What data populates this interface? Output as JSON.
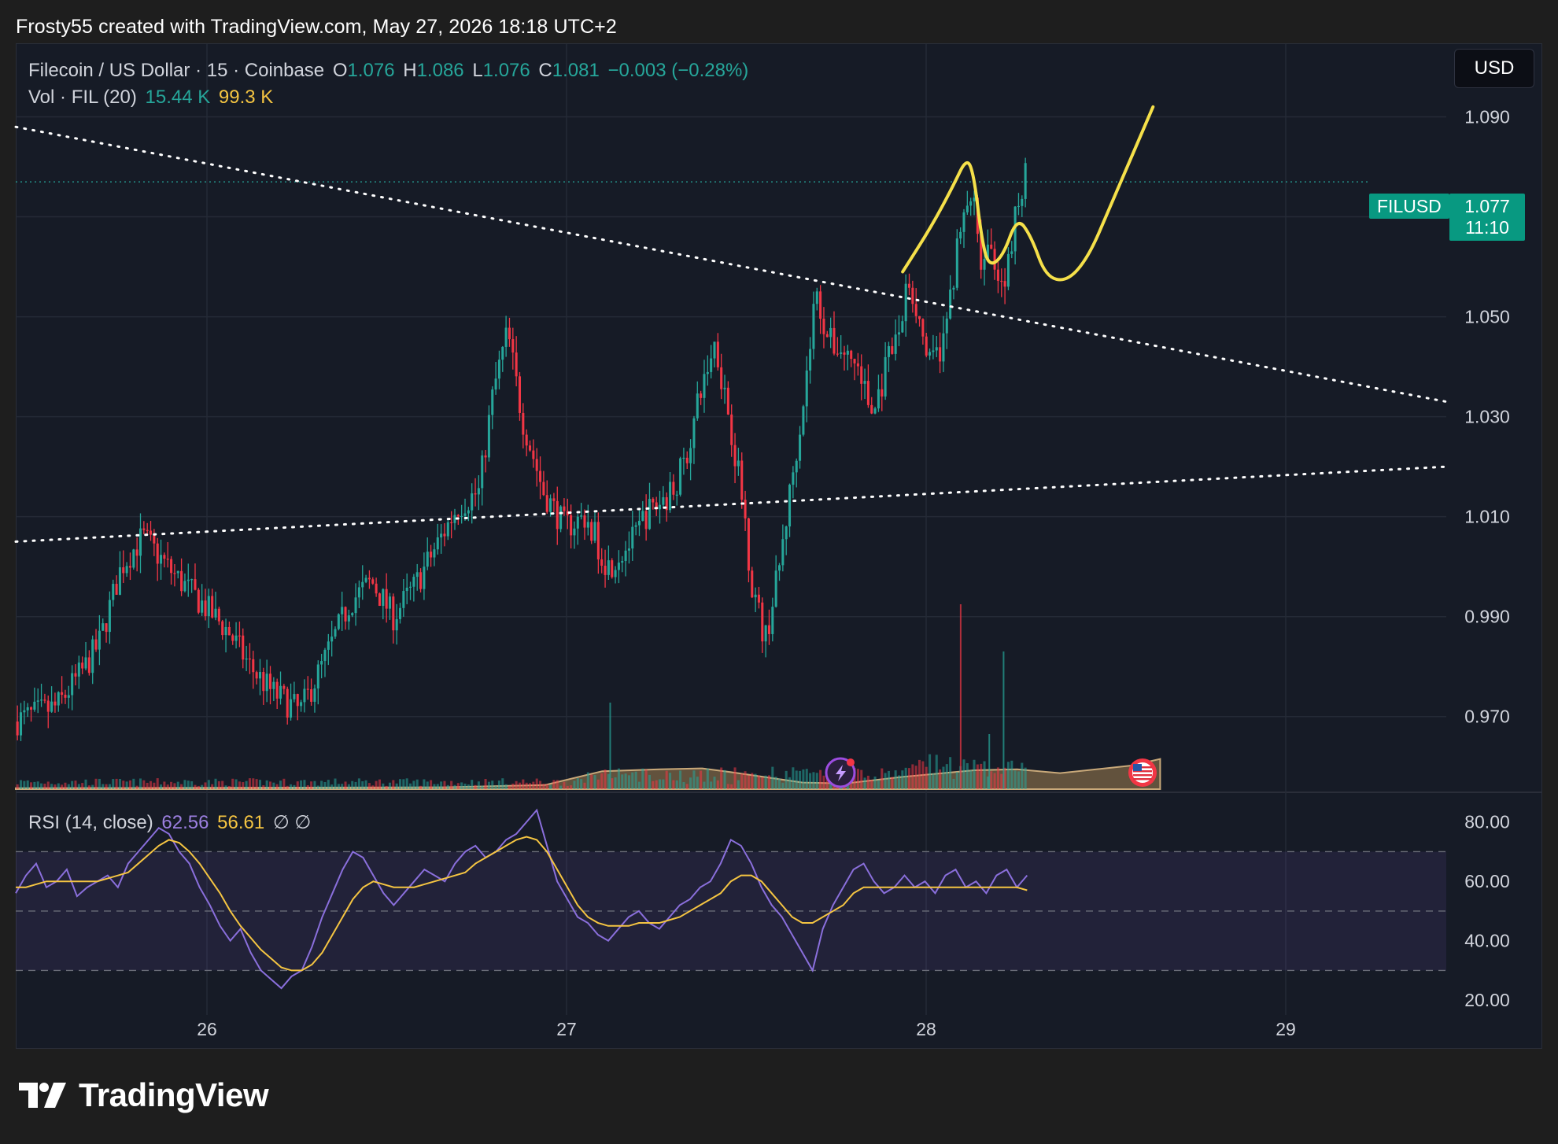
{
  "header": {
    "attribution": "Frosty55 created with TradingView.com, May 27, 2026 18:18 UTC+2"
  },
  "legend": {
    "symbol": "Filecoin / US Dollar · 15 · Coinbase",
    "o_label": "O",
    "o_value": "1.076",
    "h_label": "H",
    "h_value": "1.086",
    "l_label": "L",
    "l_value": "1.076",
    "c_label": "C",
    "c_value": "1.081",
    "change": "−0.003 (−0.28%)",
    "vol_label": "Vol · FIL (20)",
    "vol_value": "15.44 K",
    "vol_ma": "99.3 K",
    "rsi_label": "RSI (14, close)",
    "rsi_value": "62.56",
    "rsi_ma": "56.61",
    "rsi_flags": "∅ ∅"
  },
  "currency_button": {
    "label": "USD"
  },
  "price_label": {
    "symbol": "FILUSD",
    "price": "1.077",
    "countdown": "11:10"
  },
  "brand": {
    "name": "TradingView"
  },
  "colors": {
    "up": "#26a69a",
    "down": "#f23645",
    "drawing": "#f5e04a",
    "rsi": "#8a6fdc",
    "rsi_ma": "#f5c542",
    "background": "#161b26"
  },
  "icons": [
    "lightning-event-icon",
    "us-flag-event-icon",
    "tradingview-logo-icon"
  ],
  "chart_data": [
    {
      "type": "candlestick",
      "x_ticks": [
        "26",
        "27",
        "28",
        "29"
      ],
      "y_ticks": [
        "1.090",
        "1.050",
        "1.030",
        "1.010",
        "0.990",
        "0.970"
      ],
      "ylim": [
        0.955,
        1.1
      ],
      "last_price": 1.077,
      "ohlc_last": {
        "open": 1.076,
        "high": 1.086,
        "low": 1.076,
        "close": 1.081
      },
      "close_path": [
        [
          0.0,
          0.969
        ],
        [
          0.03,
          0.972
        ],
        [
          0.05,
          0.98
        ],
        [
          0.06,
          0.985
        ],
        [
          0.075,
          1.0
        ],
        [
          0.09,
          1.006
        ],
        [
          0.11,
          0.999
        ],
        [
          0.13,
          0.993
        ],
        [
          0.15,
          0.987
        ],
        [
          0.165,
          0.98
        ],
        [
          0.18,
          0.975
        ],
        [
          0.2,
          0.971
        ],
        [
          0.215,
          0.98
        ],
        [
          0.235,
          0.993
        ],
        [
          0.25,
          0.997
        ],
        [
          0.265,
          0.99
        ],
        [
          0.28,
          0.996
        ],
        [
          0.295,
          1.004
        ],
        [
          0.31,
          1.012
        ],
        [
          0.325,
          1.015
        ],
        [
          0.335,
          1.035
        ],
        [
          0.345,
          1.047
        ],
        [
          0.355,
          1.03
        ],
        [
          0.37,
          1.015
        ],
        [
          0.385,
          1.008
        ],
        [
          0.4,
          1.01
        ],
        [
          0.415,
          1.0
        ],
        [
          0.425,
          1.003
        ],
        [
          0.435,
          1.006
        ],
        [
          0.44,
          1.01
        ],
        [
          0.46,
          1.015
        ],
        [
          0.47,
          1.022
        ],
        [
          0.48,
          1.035
        ],
        [
          0.49,
          1.045
        ],
        [
          0.5,
          1.03
        ],
        [
          0.51,
          1.012
        ],
        [
          0.515,
          0.998
        ],
        [
          0.525,
          0.985
        ],
        [
          0.535,
          1.0
        ],
        [
          0.545,
          1.02
        ],
        [
          0.555,
          1.04
        ],
        [
          0.56,
          1.055
        ],
        [
          0.57,
          1.045
        ],
        [
          0.58,
          1.043
        ],
        [
          0.59,
          1.04
        ],
        [
          0.6,
          1.03
        ],
        [
          0.61,
          1.04
        ],
        [
          0.62,
          1.048
        ],
        [
          0.625,
          1.058
        ],
        [
          0.63,
          1.053
        ],
        [
          0.64,
          1.04
        ],
        [
          0.65,
          1.045
        ],
        [
          0.66,
          1.065
        ],
        [
          0.67,
          1.075
        ],
        [
          0.675,
          1.06
        ],
        [
          0.685,
          1.063
        ],
        [
          0.69,
          1.055
        ],
        [
          0.695,
          1.062
        ],
        [
          0.7,
          1.07
        ],
        [
          0.705,
          1.077
        ],
        [
          0.707,
          1.081
        ]
      ],
      "volume_ma_series": [
        [
          0.0,
          0.5
        ],
        [
          0.3,
          1.0
        ],
        [
          0.37,
          2.2
        ],
        [
          0.41,
          9.5
        ],
        [
          0.45,
          10.5
        ],
        [
          0.48,
          11.0
        ],
        [
          0.5,
          9.0
        ],
        [
          0.55,
          3.5
        ],
        [
          0.58,
          3.0
        ],
        [
          0.62,
          6.5
        ],
        [
          0.67,
          10.0
        ],
        [
          0.7,
          10.5
        ],
        [
          0.73,
          8.5
        ],
        [
          0.78,
          12.5
        ],
        [
          0.8,
          16.0
        ]
      ],
      "trendlines": [
        {
          "name": "",
          "style": "dotted",
          "from": [
            0.0,
            1.088
          ],
          "to": [
            1.0,
            1.033
          ]
        },
        {
          "name": "",
          "style": "dotted",
          "from": [
            0.0,
            1.005
          ],
          "to": [
            1.0,
            1.02
          ]
        }
      ],
      "forecast_sketch": [
        [
          0.62,
          1.059
        ],
        [
          0.64,
          1.068
        ],
        [
          0.655,
          1.076
        ],
        [
          0.665,
          1.082
        ],
        [
          0.67,
          1.078
        ],
        [
          0.675,
          1.066
        ],
        [
          0.68,
          1.06
        ],
        [
          0.69,
          1.062
        ],
        [
          0.7,
          1.07
        ],
        [
          0.71,
          1.066
        ],
        [
          0.72,
          1.058
        ],
        [
          0.735,
          1.057
        ],
        [
          0.75,
          1.062
        ],
        [
          0.765,
          1.072
        ],
        [
          0.78,
          1.082
        ],
        [
          0.795,
          1.092
        ]
      ]
    },
    {
      "type": "line",
      "title": "",
      "ylim": [
        15,
        90
      ],
      "y_ticks": [
        "80.00",
        "60.00",
        "40.00",
        "20.00"
      ],
      "bands": {
        "upper": 70,
        "middle": 50,
        "lower": 30
      },
      "series": [
        {
          "name": "RSI",
          "values": [
            56,
            62,
            66,
            58,
            60,
            64,
            55,
            58,
            60,
            62,
            58,
            66,
            70,
            74,
            78,
            76,
            70,
            66,
            58,
            52,
            45,
            40,
            44,
            36,
            30,
            27,
            24,
            28,
            30,
            38,
            48,
            56,
            64,
            70,
            68,
            62,
            56,
            52,
            56,
            60,
            64,
            62,
            60,
            66,
            70,
            72,
            68,
            70,
            74,
            76,
            80,
            84,
            72,
            60,
            54,
            48,
            46,
            42,
            40,
            44,
            48,
            50,
            46,
            44,
            48,
            52,
            54,
            58,
            60,
            66,
            74,
            72,
            66,
            58,
            52,
            48,
            42,
            36,
            30,
            44,
            52,
            58,
            64,
            66,
            60,
            56,
            58,
            62,
            58,
            60,
            56,
            62,
            64,
            58,
            60,
            56,
            62,
            64,
            58,
            62
          ]
        },
        {
          "name": "RSI-based MA",
          "values": [
            58,
            58,
            59,
            60,
            60,
            60,
            60,
            60,
            60,
            61,
            62,
            63,
            66,
            69,
            72,
            74,
            73,
            70,
            66,
            61,
            56,
            50,
            45,
            41,
            37,
            34,
            31,
            30,
            30,
            32,
            36,
            42,
            48,
            54,
            58,
            60,
            59,
            58,
            58,
            58,
            59,
            60,
            61,
            62,
            63,
            66,
            68,
            70,
            72,
            74,
            75,
            74,
            70,
            64,
            58,
            52,
            48,
            46,
            45,
            45,
            45,
            46,
            46,
            46,
            47,
            48,
            50,
            52,
            54,
            56,
            60,
            62,
            62,
            60,
            56,
            52,
            48,
            46,
            46,
            48,
            50,
            52,
            56,
            58,
            58,
            58,
            58,
            58,
            58,
            58,
            58,
            58,
            58,
            58,
            58,
            58,
            58,
            58,
            58,
            57
          ]
        }
      ]
    }
  ]
}
